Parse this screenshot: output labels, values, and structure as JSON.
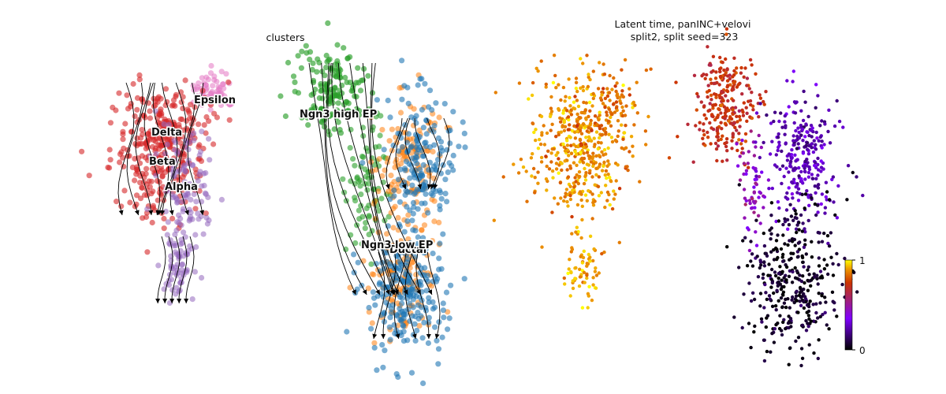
{
  "chart_data": [
    {
      "type": "scatter",
      "subtype": "umap-embedding-with-velocity-streamlines",
      "title": "clusters",
      "axes_visible": false,
      "legend": "on-data",
      "clusters": [
        {
          "name": "Epsilon",
          "color": "#e377c2"
        },
        {
          "name": "Delta",
          "color": "#d62728"
        },
        {
          "name": "Beta",
          "color": "#d62728"
        },
        {
          "name": "Alpha",
          "color": "#9467bd"
        },
        {
          "name": "Ngn3 high EP",
          "color": "#2ca02c"
        },
        {
          "name": "Ngn3 low EP",
          "color": "#ff7f0e"
        },
        {
          "name": "Ductal",
          "color": "#1f77b4"
        }
      ],
      "streamlines": true
    },
    {
      "type": "scatter",
      "subtype": "umap-embedding-colored-by-latent-time",
      "title": "Latent time, panINC+velovi\nsplit2, split seed=323",
      "axes_visible": false,
      "colorbar": {
        "min": 0,
        "max": 1,
        "ticks": [
          "0",
          "1"
        ],
        "colormap": "gnuplot"
      },
      "regions": [
        {
          "name": "left-island",
          "latent_time": 0.88
        },
        {
          "name": "upper-right-cluster",
          "latent_time": 0.72
        },
        {
          "name": "center-connector",
          "latent_time": 0.45
        },
        {
          "name": "right-upper-band",
          "latent_time": 0.25
        },
        {
          "name": "bottom-cluster",
          "latent_time": 0.05
        }
      ]
    }
  ]
}
